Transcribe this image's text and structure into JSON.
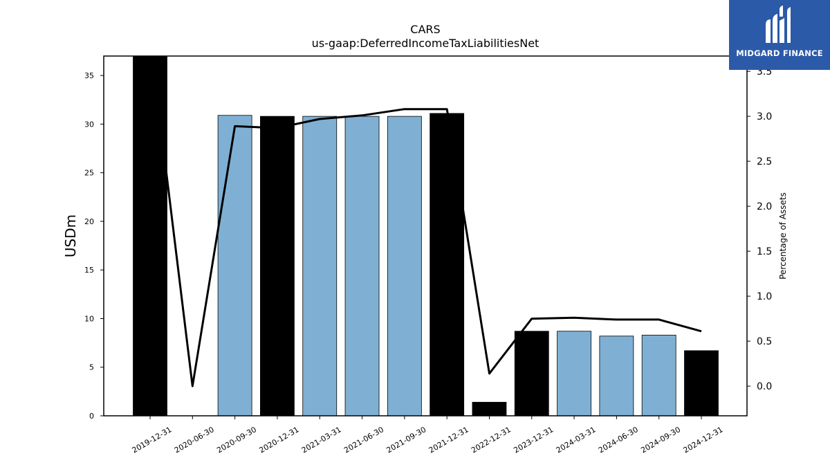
{
  "logo": {
    "text": "MIDGARD FINANCE"
  },
  "chart_data": {
    "type": "bar",
    "title": "CARS",
    "subtitle": "us-gaap:DeferredIncomeTaxLiabilitiesNet",
    "ylabel": "USDm",
    "y2label": "Percentage of Assets",
    "categories": [
      "2019-12-31",
      "2020-06-30",
      "2020-09-30",
      "2020-12-31",
      "2021-03-31",
      "2021-06-30",
      "2021-09-30",
      "2021-12-31",
      "2022-12-31",
      "2023-12-31",
      "2024-03-31",
      "2024-06-30",
      "2024-09-30",
      "2024-12-31"
    ],
    "values": [
      37.5,
      0,
      30.9,
      30.8,
      30.8,
      30.8,
      30.8,
      31.1,
      1.4,
      8.7,
      8.7,
      8.2,
      8.3,
      6.7
    ],
    "bar_kind": [
      "annual",
      "quarterly",
      "quarterly",
      "annual",
      "quarterly",
      "quarterly",
      "quarterly",
      "annual",
      "annual",
      "annual",
      "quarterly",
      "quarterly",
      "quarterly",
      "annual"
    ],
    "colors": {
      "annual": "#000000",
      "quarterly": "#7fb0d3",
      "line": "#000000"
    },
    "ylim": [
      0,
      37
    ],
    "yticks": [
      0,
      5,
      10,
      15,
      20,
      25,
      30,
      35
    ],
    "line": {
      "name": "Percentage of Assets",
      "values": [
        3.85,
        0.0,
        2.89,
        2.87,
        2.97,
        3.01,
        3.08,
        3.08,
        0.14,
        0.75,
        0.76,
        0.74,
        0.74,
        0.61
      ]
    },
    "y2lim": [
      -0.33,
      3.67
    ],
    "y2ticks": [
      "0.0",
      "0.5",
      "1.0",
      "1.5",
      "2.0",
      "2.5",
      "3.0",
      "3.5"
    ],
    "grid": false
  }
}
